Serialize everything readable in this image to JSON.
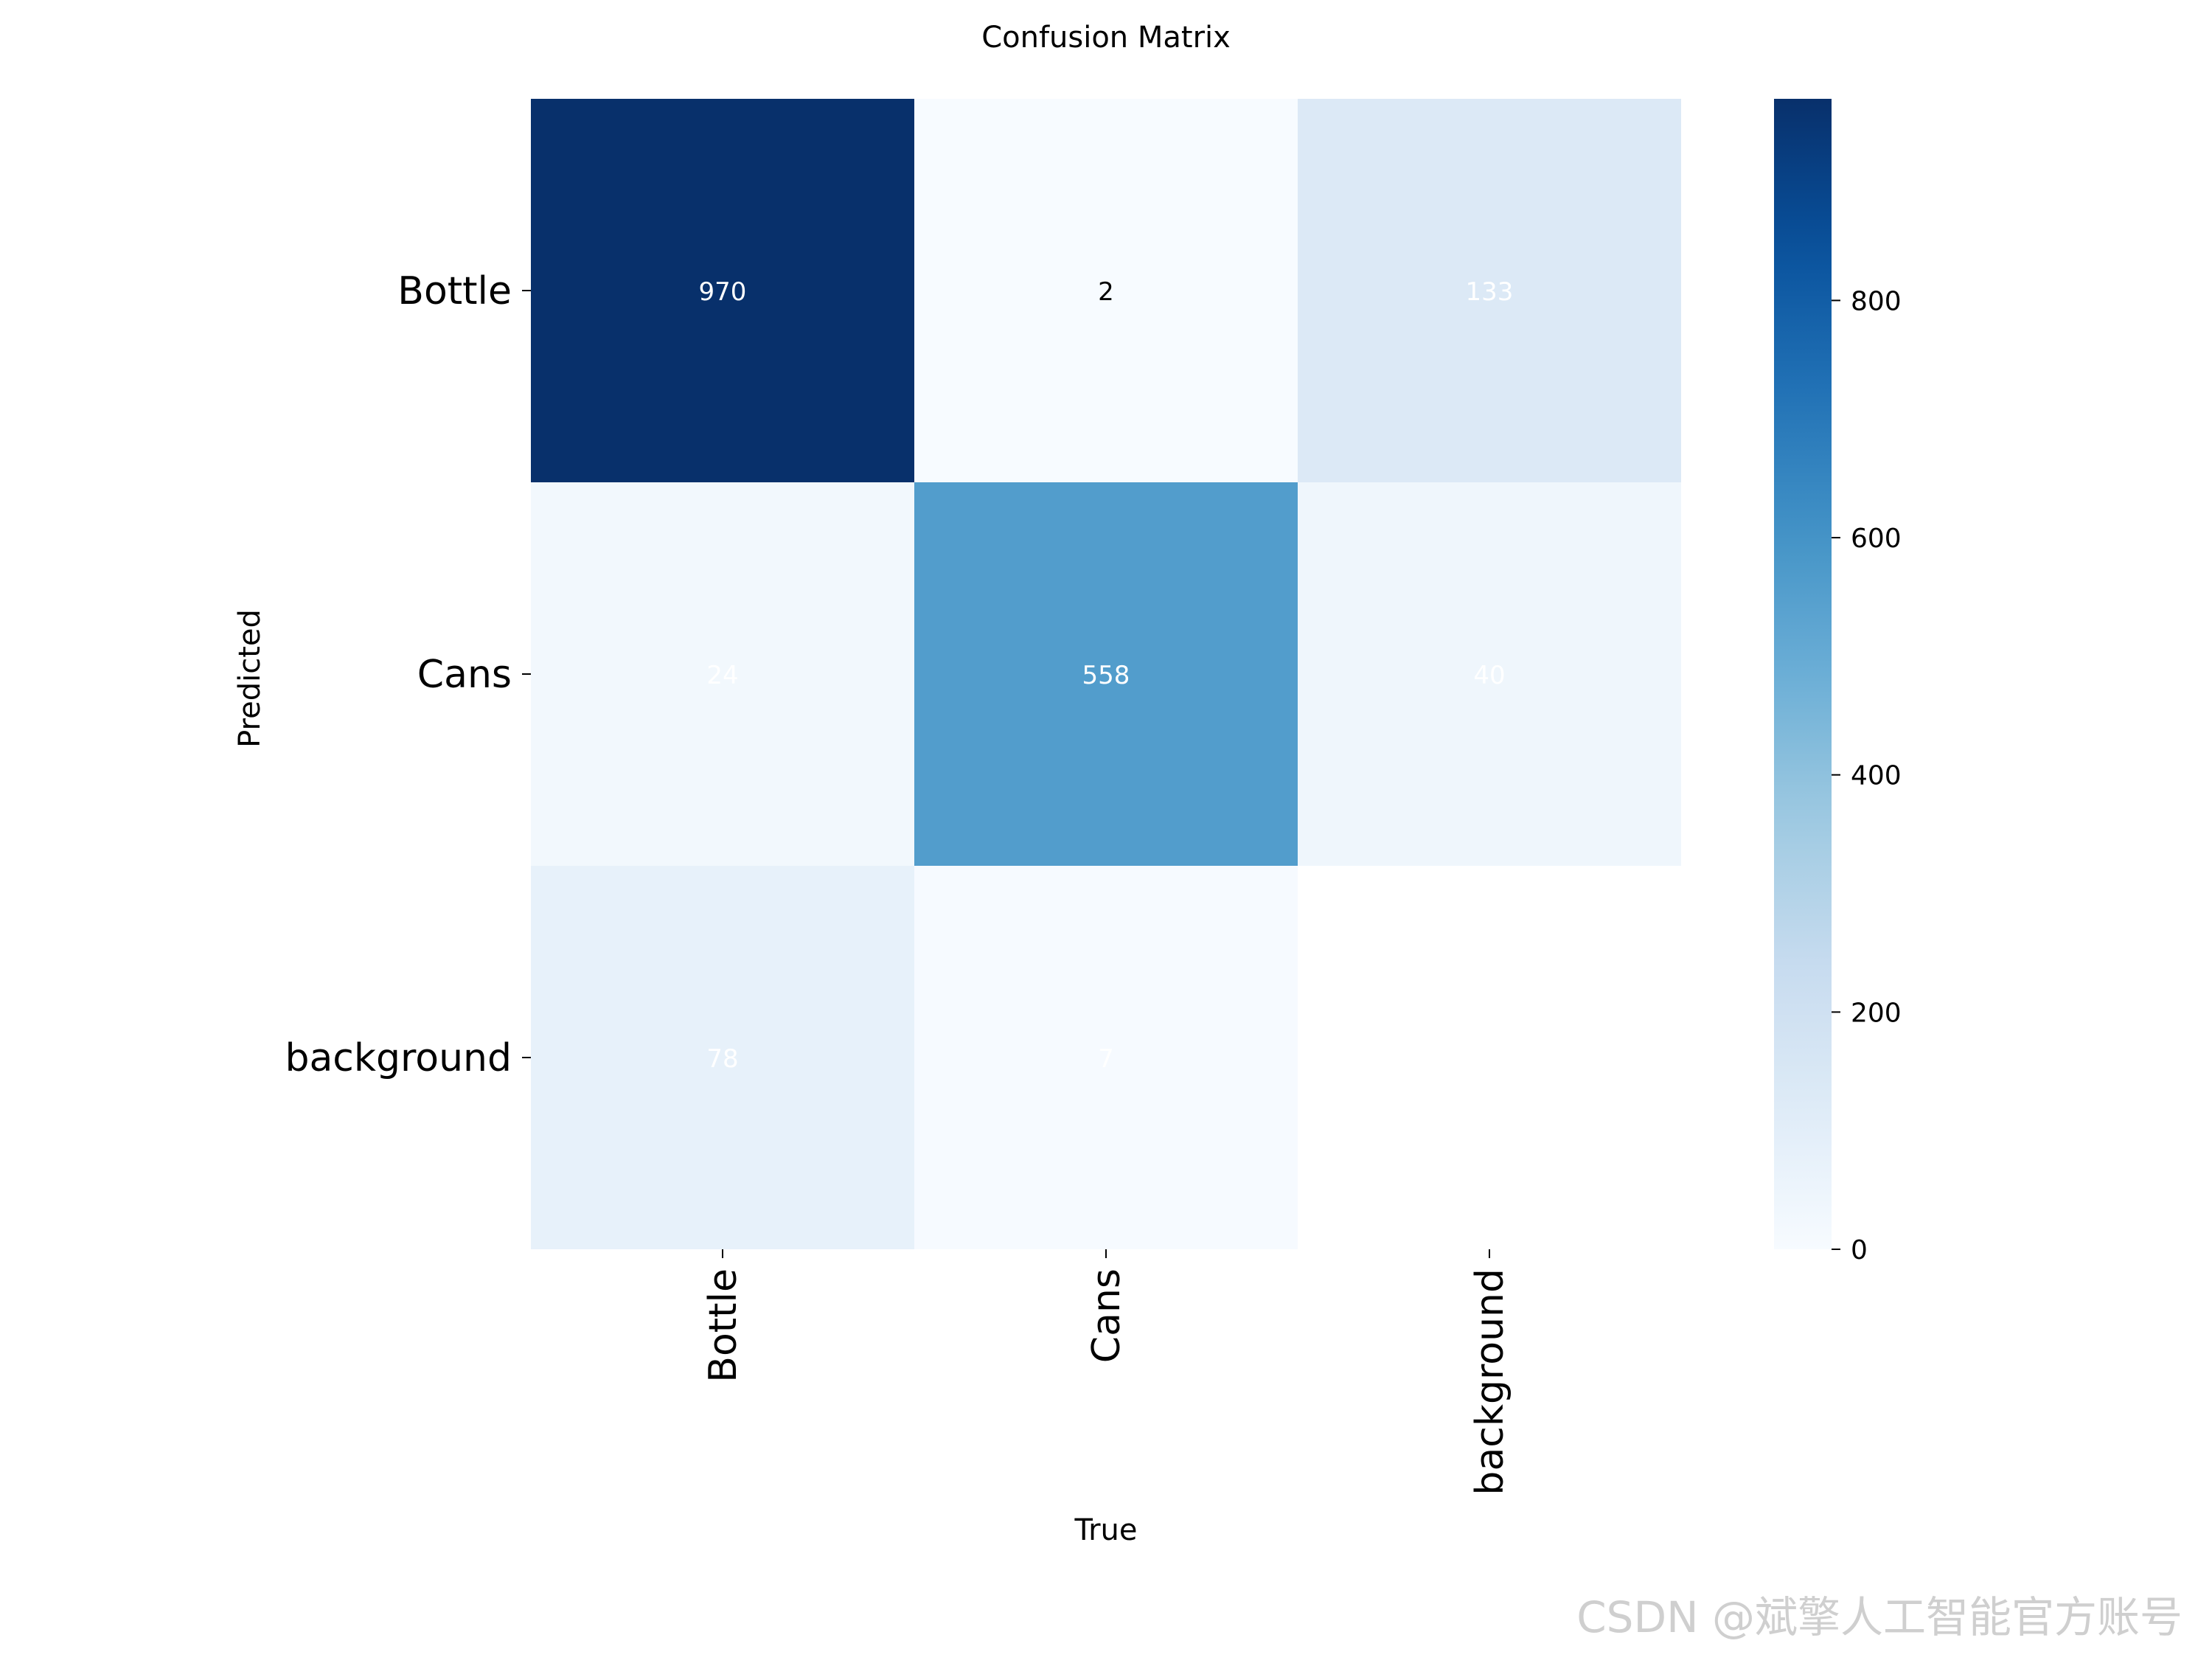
{
  "chart_data": {
    "type": "heatmap",
    "title": "Confusion Matrix",
    "xlabel": "True",
    "ylabel": "Predicted",
    "x_categories": [
      "Bottle",
      "Cans",
      "background"
    ],
    "y_categories": [
      "Bottle",
      "Cans",
      "background"
    ],
    "values": [
      [
        970,
        2,
        133
      ],
      [
        24,
        558,
        40
      ],
      [
        78,
        7,
        null
      ]
    ],
    "colormap": "Blues",
    "vmin": 0,
    "vmax": 970,
    "colorbar_ticks": [
      0,
      200,
      400,
      600,
      800
    ],
    "colors": {
      "low": "#f7fbff",
      "mid": "#6baed6",
      "high": "#08306b",
      "empty_cell": "#ffffff"
    }
  },
  "watermark": "CSDN @斌擎人工智能官方账号"
}
